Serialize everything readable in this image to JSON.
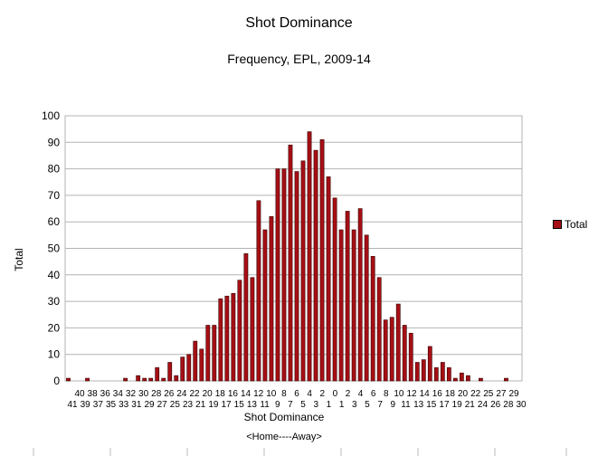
{
  "chart_data": {
    "type": "bar",
    "title": "Shot Dominance",
    "subtitle": "Frequency, EPL, 2009-14",
    "xlabel": "Shot Dominance",
    "xlabel_note": "<Home----Away>",
    "ylabel": "Total",
    "ylim": [
      0,
      100
    ],
    "yticks": [
      0,
      10,
      20,
      30,
      40,
      50,
      60,
      70,
      80,
      90,
      100
    ],
    "grid": true,
    "legend_position": "right",
    "bar_color": "#a50f15",
    "categories": [
      "41",
      "40",
      "39",
      "38",
      "37",
      "36",
      "35",
      "34",
      "33",
      "32",
      "31",
      "30",
      "29",
      "28",
      "27",
      "26",
      "25",
      "24",
      "23",
      "22",
      "21",
      "20",
      "19",
      "18",
      "17",
      "16",
      "15",
      "14",
      "13",
      "12",
      "11",
      "10",
      "9",
      "8",
      "7",
      "6",
      "5",
      "4",
      "3",
      "2",
      "1",
      "0",
      "1",
      "2",
      "3",
      "4",
      "5",
      "6",
      "7",
      "8",
      "9",
      "10",
      "11",
      "12",
      "13",
      "14",
      "15",
      "16",
      "17",
      "18",
      "19",
      "20",
      "21",
      "22",
      "23",
      "24",
      "25",
      "26",
      "27",
      "28",
      "29",
      "30"
    ],
    "tick_row_upper": [
      "40",
      "38",
      "36",
      "34",
      "32",
      "30",
      "28",
      "26",
      "24",
      "22",
      "20",
      "18",
      "16",
      "14",
      "12",
      "10",
      "8",
      "6",
      "4",
      "2",
      "0",
      "2",
      "4",
      "6",
      "8",
      "10",
      "12",
      "14",
      "16",
      "18",
      "20",
      "22",
      "25",
      "27",
      "29"
    ],
    "tick_row_lower": [
      "41",
      "39",
      "37",
      "35",
      "33",
      "31",
      "29",
      "27",
      "25",
      "23",
      "21",
      "19",
      "17",
      "15",
      "13",
      "11",
      "9",
      "7",
      "5",
      "3",
      "1",
      "1",
      "3",
      "5",
      "7",
      "9",
      "11",
      "13",
      "15",
      "17",
      "19",
      "21",
      "24",
      "26",
      "28",
      "30"
    ],
    "series": [
      {
        "name": "Total",
        "values": [
          1,
          0,
          0,
          1,
          0,
          0,
          0,
          0,
          0,
          1,
          0,
          2,
          1,
          1,
          5,
          1,
          7,
          2,
          9,
          10,
          15,
          12,
          21,
          21,
          31,
          32,
          33,
          38,
          48,
          39,
          68,
          57,
          62,
          80,
          80,
          89,
          79,
          83,
          94,
          87,
          91,
          77,
          69,
          57,
          64,
          57,
          65,
          55,
          47,
          39,
          23,
          24,
          29,
          21,
          18,
          7,
          8,
          13,
          5,
          7,
          5,
          1,
          3,
          2,
          0,
          1,
          0,
          0,
          0,
          1,
          0,
          0
        ]
      }
    ]
  },
  "legend": {
    "label": "Total"
  }
}
